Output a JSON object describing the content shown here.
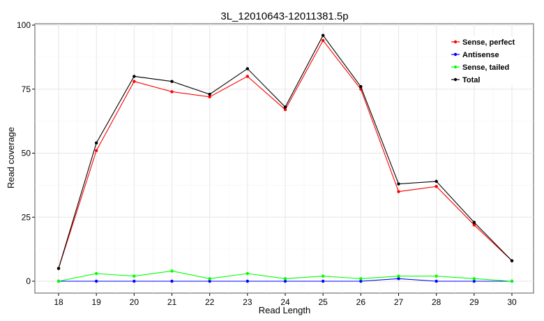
{
  "chart_data": {
    "type": "line",
    "title": "3L_12010643-12011381.5p",
    "xlabel": "Read Length",
    "ylabel": "Read coverage",
    "x": [
      18,
      19,
      20,
      21,
      22,
      23,
      24,
      25,
      26,
      27,
      28,
      29,
      30
    ],
    "xlim": [
      18,
      30
    ],
    "ylim": [
      0,
      100
    ],
    "yticks": [
      0,
      25,
      50,
      75,
      100
    ],
    "grid": true,
    "legend_position": "top-right",
    "series": [
      {
        "name": "Sense, perfect",
        "color": "#ff0000",
        "values": [
          5,
          51,
          78,
          74,
          72,
          80,
          67,
          94,
          75,
          35,
          37,
          22,
          8
        ]
      },
      {
        "name": "Antisense",
        "color": "#0000ff",
        "values": [
          0,
          0,
          0,
          0,
          0,
          0,
          0,
          0,
          0,
          1,
          0,
          0,
          0
        ]
      },
      {
        "name": "Sense, tailed",
        "color": "#00ff00",
        "values": [
          0,
          3,
          2,
          4,
          1,
          3,
          1,
          2,
          1,
          2,
          2,
          1,
          0
        ]
      },
      {
        "name": "Total",
        "color": "#000000",
        "values": [
          5,
          54,
          80,
          78,
          73,
          83,
          68,
          96,
          76,
          38,
          39,
          23,
          8
        ]
      }
    ]
  }
}
